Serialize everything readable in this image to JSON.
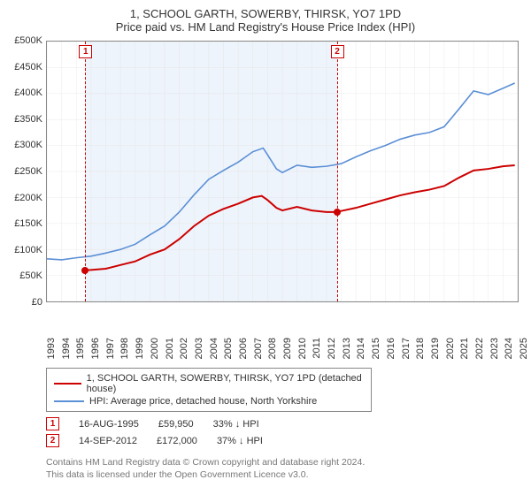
{
  "chart": {
    "title_line1": "1, SCHOOL GARTH, SOWERBY, THIRSK, YO7 1PD",
    "title_line2": "Price paid vs. HM Land Registry's House Price Index (HPI)",
    "title_fontsize": 13,
    "axis_fontsize": 11,
    "background_color": "#ffffff",
    "border_color": "#888888",
    "grid_color": "#dddddd",
    "y": {
      "min": 0,
      "max": 500000,
      "step": 50000,
      "prefix": "£",
      "suffix": "K",
      "scale_divisor": 1000
    },
    "x": {
      "min": 1993,
      "max": 2025,
      "step": 1
    },
    "shade": {
      "from_year": 1995.6,
      "to_year": 2012.7,
      "color": "#eef4fb"
    },
    "markers": [
      {
        "n": "1",
        "year": 1995.6,
        "value": 59950,
        "line_color": "#cc0000",
        "dash": "2,3"
      },
      {
        "n": "2",
        "year": 2012.7,
        "value": 172000,
        "line_color": "#cc0000",
        "dash": "2,3"
      }
    ],
    "series": [
      {
        "name": "price_paid",
        "label": "1, SCHOOL GARTH, SOWERBY, THIRSK, YO7 1PD (detached house)",
        "color": "#cc0000",
        "line_width": 2,
        "points": [
          [
            1995.6,
            59950
          ],
          [
            1996,
            60500
          ],
          [
            1997,
            63000
          ],
          [
            1998,
            70000
          ],
          [
            1999,
            77000
          ],
          [
            2000,
            90000
          ],
          [
            2001,
            100000
          ],
          [
            2002,
            120000
          ],
          [
            2003,
            145000
          ],
          [
            2004,
            165000
          ],
          [
            2005,
            178000
          ],
          [
            2006,
            188000
          ],
          [
            2007,
            200000
          ],
          [
            2007.6,
            203000
          ],
          [
            2008,
            195000
          ],
          [
            2008.6,
            180000
          ],
          [
            2009,
            175000
          ],
          [
            2010,
            182000
          ],
          [
            2011,
            175000
          ],
          [
            2012,
            172000
          ],
          [
            2012.7,
            172000
          ],
          [
            2013,
            174000
          ],
          [
            2014,
            180000
          ],
          [
            2015,
            188000
          ],
          [
            2016,
            196000
          ],
          [
            2017,
            204000
          ],
          [
            2018,
            210000
          ],
          [
            2019,
            215000
          ],
          [
            2020,
            222000
          ],
          [
            2021,
            238000
          ],
          [
            2022,
            252000
          ],
          [
            2023,
            255000
          ],
          [
            2024,
            260000
          ],
          [
            2024.8,
            262000
          ]
        ]
      },
      {
        "name": "hpi",
        "label": "HPI: Average price, detached house, North Yorkshire",
        "color": "#5b8fd6",
        "line_width": 1.6,
        "points": [
          [
            1993,
            82000
          ],
          [
            1994,
            80000
          ],
          [
            1995,
            84000
          ],
          [
            1996,
            87000
          ],
          [
            1997,
            93000
          ],
          [
            1998,
            100000
          ],
          [
            1999,
            110000
          ],
          [
            2000,
            128000
          ],
          [
            2001,
            145000
          ],
          [
            2002,
            172000
          ],
          [
            2003,
            205000
          ],
          [
            2004,
            235000
          ],
          [
            2005,
            252000
          ],
          [
            2006,
            268000
          ],
          [
            2007,
            288000
          ],
          [
            2007.7,
            295000
          ],
          [
            2008,
            282000
          ],
          [
            2008.6,
            255000
          ],
          [
            2009,
            248000
          ],
          [
            2010,
            262000
          ],
          [
            2011,
            258000
          ],
          [
            2012,
            260000
          ],
          [
            2013,
            265000
          ],
          [
            2014,
            278000
          ],
          [
            2015,
            290000
          ],
          [
            2016,
            300000
          ],
          [
            2017,
            312000
          ],
          [
            2018,
            320000
          ],
          [
            2019,
            325000
          ],
          [
            2020,
            336000
          ],
          [
            2021,
            370000
          ],
          [
            2022,
            405000
          ],
          [
            2023,
            398000
          ],
          [
            2024,
            410000
          ],
          [
            2024.8,
            420000
          ]
        ]
      }
    ],
    "marker_dot_color": "#cc0000"
  },
  "legend": {
    "items": [
      {
        "color": "#cc0000",
        "label": "1, SCHOOL GARTH, SOWERBY, THIRSK, YO7 1PD (detached house)"
      },
      {
        "color": "#5b8fd6",
        "label": "HPI: Average price, detached house, North Yorkshire"
      }
    ]
  },
  "transactions": [
    {
      "n": "1",
      "date": "16-AUG-1995",
      "price": "£59,950",
      "pct": "33%",
      "arrow": "↓",
      "vs": "HPI",
      "color": "#cc0000"
    },
    {
      "n": "2",
      "date": "14-SEP-2012",
      "price": "£172,000",
      "pct": "37%",
      "arrow": "↓",
      "vs": "HPI",
      "color": "#cc0000"
    }
  ],
  "footer": {
    "line1": "Contains HM Land Registry data © Crown copyright and database right 2024.",
    "line2": "This data is licensed under the Open Government Licence v3.0."
  }
}
